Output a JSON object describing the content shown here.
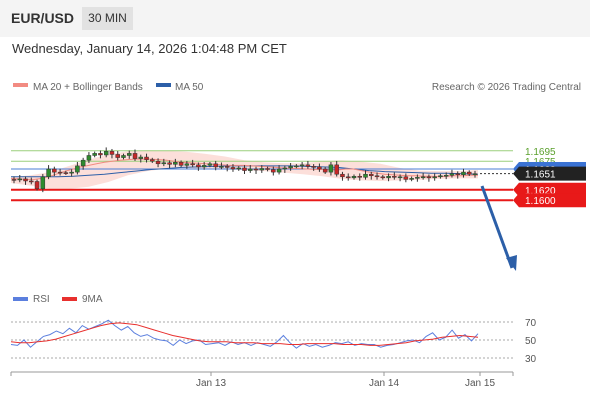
{
  "header": {
    "symbol": "EUR/USD",
    "timeframe": "30 MIN",
    "datetime": "Wednesday, January 14, 2026 1:04:48 PM CET"
  },
  "chart_data": [
    {
      "type": "candlestick",
      "title": "EUR/USD",
      "legend": [
        {
          "label": "MA 20 + Bollinger Bands",
          "color": "#f28b82"
        },
        {
          "label": "MA 50",
          "color": "#2c5fa8"
        }
      ],
      "credit": "Research © 2026 Trading Central",
      "y_range": [
        1.1595,
        1.1702
      ],
      "x_ticks": [
        "Jan 13",
        "Jan 14",
        "Jan 15"
      ],
      "levels": [
        {
          "value": 1.1695,
          "label": "1.1695",
          "style": "green-line"
        },
        {
          "value": 1.1675,
          "label": "1.1675",
          "style": "green-line"
        },
        {
          "value": 1.166,
          "label": "1.1660",
          "style": "blue-line"
        },
        {
          "value": 1.1651,
          "label": "1.1651",
          "style": "current-price"
        },
        {
          "value": 1.162,
          "label": "1.1620",
          "style": "red-line"
        },
        {
          "value": 1.16,
          "label": "1.1600",
          "style": "red-line"
        }
      ],
      "forecast_arrow": {
        "from": 1.1651,
        "to": 1.1602
      },
      "price_path": [
        1.164,
        1.1639,
        1.1641,
        1.1637,
        1.1636,
        1.1622,
        1.1645,
        1.166,
        1.1654,
        1.1653,
        1.1652,
        1.1654,
        1.1666,
        1.1677,
        1.1686,
        1.169,
        1.1687,
        1.1694,
        1.1688,
        1.1682,
        1.1686,
        1.169,
        1.168,
        1.1683,
        1.1678,
        1.1675,
        1.167,
        1.1672,
        1.1669,
        1.1673,
        1.1667,
        1.167,
        1.1668,
        1.1664,
        1.1667,
        1.167,
        1.1664,
        1.1665,
        1.1663,
        1.166,
        1.1662,
        1.1657,
        1.166,
        1.1658,
        1.1661,
        1.1659,
        1.1654,
        1.166,
        1.1662,
        1.1665,
        1.1666,
        1.1668,
        1.1665,
        1.1664,
        1.166,
        1.1654,
        1.1668,
        1.165,
        1.1645,
        1.1643,
        1.1646,
        1.1644,
        1.165,
        1.1647,
        1.1645,
        1.1643,
        1.1646,
        1.1644,
        1.1645,
        1.164,
        1.1642,
        1.1644,
        1.1645,
        1.1643,
        1.1645,
        1.1647,
        1.1648,
        1.1651,
        1.1649,
        1.1654,
        1.165,
        1.1651
      ],
      "ma20": [
        1.1642,
        1.1641,
        1.164,
        1.164,
        1.1642,
        1.1646,
        1.1651,
        1.1656,
        1.166,
        1.1664,
        1.1667,
        1.167,
        1.1673,
        1.1675,
        1.1677,
        1.1678,
        1.1679,
        1.1679,
        1.1679,
        1.1678,
        1.1677,
        1.1675,
        1.1673,
        1.1672,
        1.1671,
        1.167,
        1.1669,
        1.1668,
        1.1667,
        1.1667,
        1.1667,
        1.1666,
        1.1665,
        1.1664,
        1.1663,
        1.1662,
        1.1661,
        1.1661,
        1.166,
        1.1659,
        1.1659,
        1.1658,
        1.1658,
        1.166,
        1.166,
        1.1657,
        1.1654,
        1.1652,
        1.165,
        1.1649,
        1.1648,
        1.1647,
        1.1647,
        1.1646,
        1.1646,
        1.1645,
        1.1646,
        1.1647,
        1.1647,
        1.1648,
        1.1648
      ],
      "ma50": [
        1.1645,
        1.1645,
        1.1645,
        1.1645,
        1.1646,
        1.1648,
        1.165,
        1.1653,
        1.1656,
        1.1659,
        1.1661,
        1.1663,
        1.1664,
        1.1665,
        1.1666,
        1.1666,
        1.1666,
        1.1666,
        1.1666,
        1.1665,
        1.1664,
        1.1663,
        1.166,
        1.1657,
        1.1655,
        1.1654,
        1.1653,
        1.1652,
        1.1652,
        1.1651,
        1.165
      ],
      "bb_upper": [
        1.1644,
        1.1648,
        1.1654,
        1.1666,
        1.1678,
        1.1688,
        1.1694,
        1.1696,
        1.1695,
        1.1693,
        1.1689,
        1.1684,
        1.1677,
        1.1673,
        1.1671,
        1.1671,
        1.1675,
        1.1677,
        1.1674,
        1.167,
        1.1662,
        1.1657,
        1.1656,
        1.1656,
        1.1658
      ],
      "bb_lower": [
        1.1633,
        1.1628,
        1.1622,
        1.1622,
        1.1626,
        1.1635,
        1.1648,
        1.1656,
        1.1661,
        1.1662,
        1.166,
        1.1659,
        1.1658,
        1.1656,
        1.1653,
        1.165,
        1.1646,
        1.1641,
        1.1638,
        1.1637,
        1.1638,
        1.1639,
        1.1641,
        1.1642,
        1.1642
      ]
    },
    {
      "type": "line",
      "legend": [
        {
          "label": "RSI",
          "color": "#5b7fde"
        },
        {
          "label": "9MA",
          "color": "#e8302e"
        }
      ],
      "y_ticks": [
        70,
        50,
        30
      ],
      "y_range": [
        20,
        80
      ],
      "rsi": [
        45,
        44,
        50,
        42,
        48,
        54,
        56,
        60,
        57,
        63,
        58,
        66,
        62,
        65,
        68,
        72,
        66,
        61,
        65,
        58,
        54,
        56,
        52,
        50,
        49,
        44,
        50,
        46,
        49,
        50,
        45,
        46,
        47,
        44,
        48,
        45,
        47,
        44,
        47,
        45,
        43,
        48,
        55,
        47,
        41,
        46,
        43,
        45,
        42,
        44,
        47,
        46,
        48,
        44,
        46,
        45,
        45,
        42,
        44,
        45,
        47,
        49,
        50,
        47,
        54,
        58,
        50,
        53,
        61,
        52,
        56,
        49,
        57
      ],
      "ma9": [
        48,
        47,
        47,
        48,
        49,
        51,
        54,
        57,
        60,
        63,
        66,
        68,
        69,
        68,
        67,
        64,
        61,
        58,
        55,
        53,
        51,
        49,
        48,
        48,
        48,
        47,
        47,
        47,
        46,
        46,
        46,
        45,
        45,
        46,
        46,
        46,
        46,
        45,
        45,
        45,
        44,
        44,
        45,
        46,
        47,
        49,
        50,
        51,
        53,
        54,
        55,
        54,
        53
      ]
    }
  ]
}
